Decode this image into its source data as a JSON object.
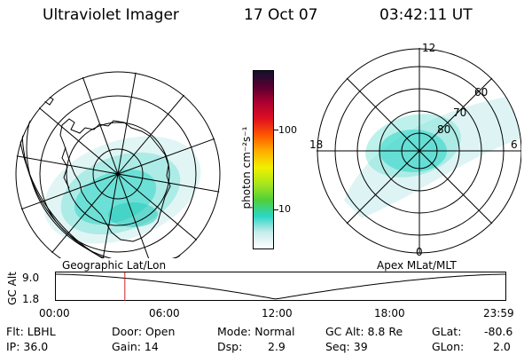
{
  "header": {
    "title": "Ultraviolet Imager",
    "date": "17 Oct 07",
    "time": "03:42:11 UT"
  },
  "maps": {
    "left_label": "Geographic Lat/Lon",
    "right_label": "Apex MLat/MLT",
    "mlt_labels": [
      "12",
      "18",
      "6",
      "0"
    ],
    "mlat_labels": [
      "60",
      "70",
      "80"
    ]
  },
  "colorbar": {
    "unit_label": "photon cm⁻²s⁻¹",
    "ticks": [
      "100",
      "10"
    ],
    "scale": "log",
    "colors": [
      "#ffffff",
      "#c8ecec",
      "#2bd6c6",
      "#4fcf3a",
      "#a8e61e",
      "#f0f000",
      "#ffb000",
      "#ff5a00",
      "#e01020",
      "#b00030",
      "#5a0030",
      "#101030"
    ]
  },
  "altitude_plot": {
    "axis_title": "GC Alt",
    "y_ticks": [
      "9.0",
      "1.8"
    ],
    "x_ticks": [
      "00:00",
      "06:00",
      "12:00",
      "18:00",
      "23:59"
    ],
    "marker_time": "03:42",
    "marker_color": "#d02020"
  },
  "info": {
    "flt": "Flt: LBHL",
    "ip": "IP: 36.0",
    "door": "Door: Open",
    "gain": "Gain: 14",
    "mode": "Mode: Normal",
    "dsp_label": "Dsp:",
    "dsp_value": "2.9",
    "gc_alt": "GC Alt: 8.8 Re",
    "seq": "Seq: 39",
    "glat_label": "GLat:",
    "glat_value": "-80.6",
    "glon_label": "GLon:",
    "glon_value": "2.0"
  }
}
